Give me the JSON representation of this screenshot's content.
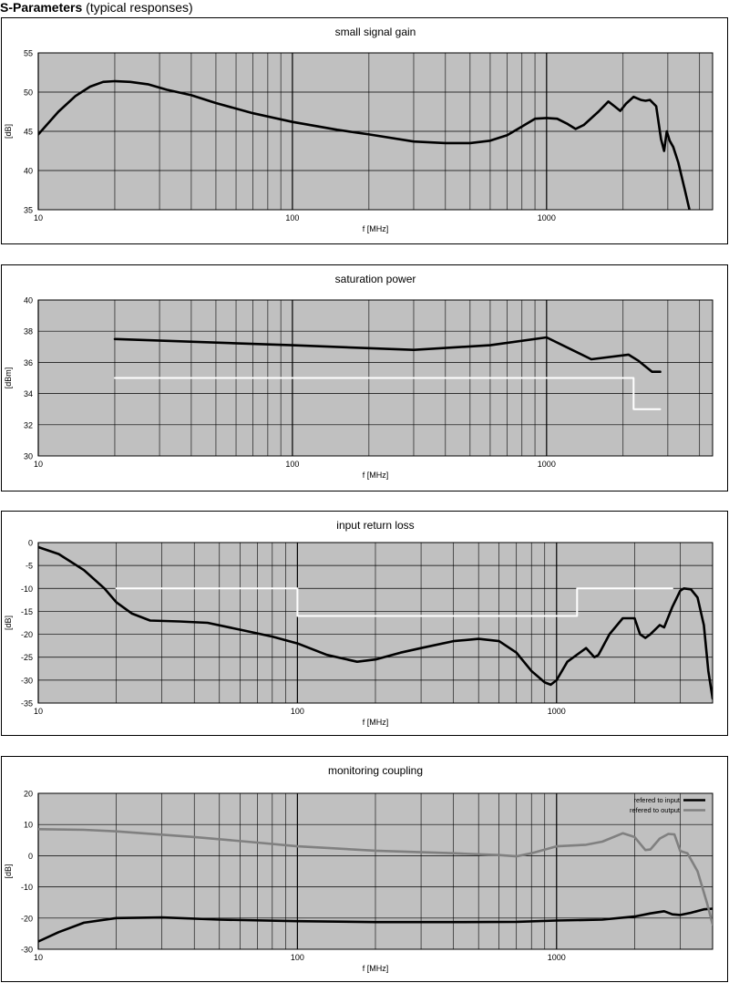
{
  "heading": {
    "bold": "S-Parameters",
    "rest": "(typical responses)"
  },
  "colors": {
    "plot_bg": "#c0c0c0",
    "grid": "#000000",
    "frame": "#000000",
    "spec_line": "#ffffff",
    "series_dark": "#000000",
    "series_gray": "#808080"
  },
  "chart_data": [
    {
      "type": "line",
      "title": "small signal gain",
      "xlabel": "f [MHz]",
      "ylabel": "[dB]",
      "xscale": "log",
      "xlim": [
        10,
        4500
      ],
      "ylim": [
        35,
        55
      ],
      "grid": true,
      "xticks": [
        {
          "value": 10,
          "label": "10"
        },
        {
          "value": 100,
          "label": "100"
        },
        {
          "value": 1000,
          "label": "1000"
        }
      ],
      "yticks": [
        35,
        40,
        45,
        50,
        55
      ],
      "series": [
        {
          "color": "#000000",
          "points": [
            [
              10,
              44.6
            ],
            [
              12,
              47.5
            ],
            [
              14,
              49.5
            ],
            [
              16,
              50.7
            ],
            [
              18,
              51.3
            ],
            [
              20,
              51.4
            ],
            [
              23,
              51.3
            ],
            [
              27,
              51
            ],
            [
              32,
              50.3
            ],
            [
              40,
              49.6
            ],
            [
              50,
              48.6
            ],
            [
              70,
              47.3
            ],
            [
              100,
              46.2
            ],
            [
              150,
              45.2
            ],
            [
              200,
              44.6
            ],
            [
              300,
              43.7
            ],
            [
              400,
              43.5
            ],
            [
              500,
              43.5
            ],
            [
              600,
              43.8
            ],
            [
              700,
              44.5
            ],
            [
              800,
              45.6
            ],
            [
              900,
              46.6
            ],
            [
              1000,
              46.7
            ],
            [
              1100,
              46.6
            ],
            [
              1200,
              46
            ],
            [
              1300,
              45.3
            ],
            [
              1400,
              45.8
            ],
            [
              1600,
              47.5
            ],
            [
              1750,
              48.8
            ],
            [
              1850,
              48.2
            ],
            [
              1950,
              47.6
            ],
            [
              2050,
              48.5
            ],
            [
              2200,
              49.4
            ],
            [
              2350,
              49
            ],
            [
              2450,
              48.9
            ],
            [
              2550,
              49
            ],
            [
              2700,
              48.2
            ],
            [
              2820,
              44
            ],
            [
              2900,
              42.5
            ],
            [
              2970,
              45
            ],
            [
              3050,
              43.8
            ],
            [
              3150,
              43
            ],
            [
              3300,
              41
            ],
            [
              3500,
              37.5
            ],
            [
              3650,
              35
            ]
          ]
        }
      ]
    },
    {
      "type": "line",
      "title": "saturation power",
      "xlabel": "f [MHz]",
      "ylabel": "[dBm]",
      "xscale": "log",
      "xlim": [
        10,
        4500
      ],
      "ylim": [
        30,
        40
      ],
      "grid": true,
      "xticks": [
        {
          "value": 10,
          "label": "10"
        },
        {
          "value": 100,
          "label": "100"
        },
        {
          "value": 1000,
          "label": "1000"
        }
      ],
      "yticks": [
        30,
        32,
        34,
        36,
        38,
        40
      ],
      "series": [
        {
          "color": "#000000",
          "points": [
            [
              20,
              37.5
            ],
            [
              100,
              37.1
            ],
            [
              300,
              36.8
            ],
            [
              600,
              37.1
            ],
            [
              1000,
              37.6
            ],
            [
              1500,
              36.2
            ],
            [
              2100,
              36.5
            ],
            [
              2300,
              36.1
            ],
            [
              2600,
              35.4
            ],
            [
              2800,
              35.4
            ]
          ]
        },
        {
          "color": "#ffffff",
          "step": true,
          "points": [
            [
              20,
              35
            ],
            [
              2200,
              35
            ],
            [
              2200,
              33
            ],
            [
              2800,
              33
            ]
          ]
        }
      ]
    },
    {
      "type": "line",
      "title": "input return loss",
      "xlabel": "f [MHz]",
      "ylabel": "[dB]",
      "xscale": "log",
      "xlim": [
        10,
        4000
      ],
      "ylim": [
        -35,
        0
      ],
      "grid": true,
      "xticks": [
        {
          "value": 10,
          "label": "10"
        },
        {
          "value": 100,
          "label": "100"
        },
        {
          "value": 1000,
          "label": "1000"
        }
      ],
      "yticks": [
        -35,
        -30,
        -25,
        -20,
        -15,
        -10,
        -5,
        0
      ],
      "series": [
        {
          "color": "#000000",
          "points": [
            [
              10,
              -1
            ],
            [
              12,
              -2.5
            ],
            [
              15,
              -6
            ],
            [
              18,
              -10
            ],
            [
              20,
              -13
            ],
            [
              23,
              -15.5
            ],
            [
              27,
              -17
            ],
            [
              35,
              -17.2
            ],
            [
              45,
              -17.5
            ],
            [
              60,
              -19
            ],
            [
              80,
              -20.5
            ],
            [
              100,
              -22
            ],
            [
              130,
              -24.5
            ],
            [
              170,
              -26
            ],
            [
              200,
              -25.5
            ],
            [
              250,
              -24
            ],
            [
              300,
              -23
            ],
            [
              400,
              -21.5
            ],
            [
              500,
              -21
            ],
            [
              600,
              -21.5
            ],
            [
              700,
              -24
            ],
            [
              800,
              -28
            ],
            [
              900,
              -30.5
            ],
            [
              950,
              -31
            ],
            [
              1000,
              -30
            ],
            [
              1100,
              -26
            ],
            [
              1300,
              -23
            ],
            [
              1400,
              -25
            ],
            [
              1450,
              -24.5
            ],
            [
              1600,
              -20
            ],
            [
              1800,
              -16.5
            ],
            [
              2000,
              -16.5
            ],
            [
              2100,
              -20
            ],
            [
              2200,
              -20.8
            ],
            [
              2300,
              -20
            ],
            [
              2500,
              -18
            ],
            [
              2600,
              -18.5
            ],
            [
              2800,
              -14
            ],
            [
              3000,
              -10.5
            ],
            [
              3100,
              -10
            ],
            [
              3300,
              -10.2
            ],
            [
              3500,
              -12
            ],
            [
              3700,
              -18
            ],
            [
              3850,
              -28
            ],
            [
              4000,
              -34
            ]
          ]
        },
        {
          "color": "#ffffff",
          "step": true,
          "points": [
            [
              20,
              -10
            ],
            [
              100,
              -10
            ],
            [
              100,
              -16
            ],
            [
              1200,
              -16
            ],
            [
              1200,
              -10
            ],
            [
              2800,
              -10
            ]
          ]
        }
      ]
    },
    {
      "type": "line",
      "title": "monitoring coupling",
      "xlabel": "f [MHz]",
      "ylabel": "[dB]",
      "xscale": "log",
      "xlim": [
        10,
        4000
      ],
      "ylim": [
        -30,
        20
      ],
      "grid": true,
      "legend": "top-right",
      "xticks": [
        {
          "value": 10,
          "label": "10"
        },
        {
          "value": 100,
          "label": "100"
        },
        {
          "value": 1000,
          "label": "1000"
        }
      ],
      "yticks": [
        -30,
        -20,
        -10,
        0,
        10,
        20
      ],
      "series": [
        {
          "name": "refered to input",
          "color": "#000000",
          "points": [
            [
              10,
              -27.5
            ],
            [
              12,
              -24.5
            ],
            [
              15,
              -21.5
            ],
            [
              20,
              -20
            ],
            [
              30,
              -19.8
            ],
            [
              50,
              -20.5
            ],
            [
              100,
              -21
            ],
            [
              200,
              -21.3
            ],
            [
              400,
              -21.3
            ],
            [
              700,
              -21.2
            ],
            [
              1000,
              -20.8
            ],
            [
              1500,
              -20.5
            ],
            [
              2000,
              -19.5
            ],
            [
              2300,
              -18.5
            ],
            [
              2600,
              -17.8
            ],
            [
              2800,
              -18.8
            ],
            [
              3000,
              -19
            ],
            [
              3300,
              -18.3
            ],
            [
              3700,
              -17.2
            ],
            [
              4000,
              -17
            ]
          ]
        },
        {
          "name": "refered to output",
          "color": "#808080",
          "points": [
            [
              10,
              8.5
            ],
            [
              15,
              8.3
            ],
            [
              20,
              7.8
            ],
            [
              40,
              6
            ],
            [
              70,
              4.2
            ],
            [
              100,
              3
            ],
            [
              200,
              1.6
            ],
            [
              400,
              0.8
            ],
            [
              600,
              0.2
            ],
            [
              700,
              -0.2
            ],
            [
              800,
              0.8
            ],
            [
              1000,
              3
            ],
            [
              1300,
              3.5
            ],
            [
              1500,
              4.5
            ],
            [
              1800,
              7.2
            ],
            [
              2000,
              6
            ],
            [
              2200,
              1.8
            ],
            [
              2300,
              2
            ],
            [
              2500,
              5.5
            ],
            [
              2700,
              7
            ],
            [
              2850,
              6.8
            ],
            [
              3000,
              1.5
            ],
            [
              3200,
              0.8
            ],
            [
              3500,
              -5
            ],
            [
              3800,
              -15
            ],
            [
              4000,
              -22
            ]
          ]
        }
      ]
    }
  ]
}
